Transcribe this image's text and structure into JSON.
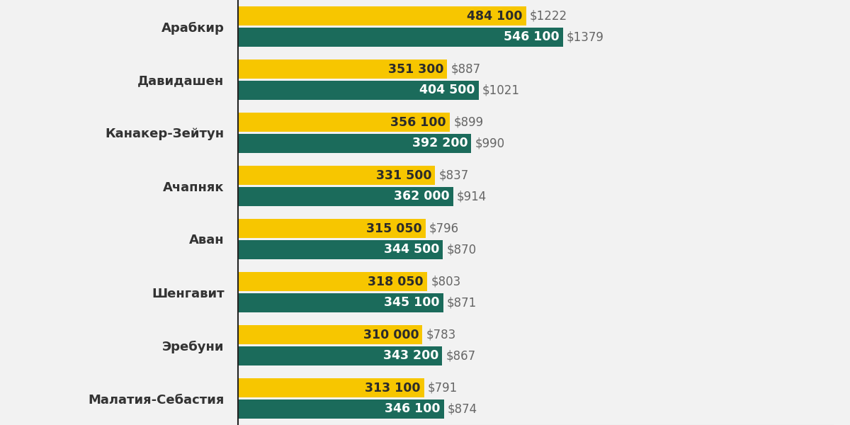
{
  "chart_data": {
    "type": "bar",
    "orientation": "horizontal",
    "data_labels": true,
    "tick_labels": "y",
    "grid": false,
    "categories": [
      "Арабкир",
      "Давидашен",
      "Канакер-Зейтун",
      "Ачапняк",
      "Аван",
      "Шенгавит",
      "Эребуни",
      "Малатия-Себастия"
    ],
    "xlim": [
      0,
      1000000
    ],
    "series": [
      {
        "color": "#f7c600",
        "values": [
          484100,
          351300,
          356100,
          331500,
          315050,
          318050,
          310000,
          313100
        ],
        "value_labels": [
          "484 100",
          "351 300",
          "356 100",
          "331 500",
          "315 050",
          "318 050",
          "310 000",
          "313 100"
        ],
        "usd_labels": [
          "$1222",
          "$887",
          "$899",
          "$837",
          "$796",
          "$803",
          "$783",
          "$791"
        ]
      },
      {
        "color": "#1b6b5b",
        "values": [
          546100,
          404500,
          392200,
          362000,
          344500,
          345100,
          343200,
          346100
        ],
        "value_labels": [
          "546 100",
          "404 500",
          "392 200",
          "362 000",
          "344 500",
          "345 100",
          "343 200",
          "346 100"
        ],
        "usd_labels": [
          "$1379",
          "$1021",
          "$990",
          "$914",
          "$870",
          "$871",
          "$867",
          "$874"
        ]
      }
    ]
  }
}
